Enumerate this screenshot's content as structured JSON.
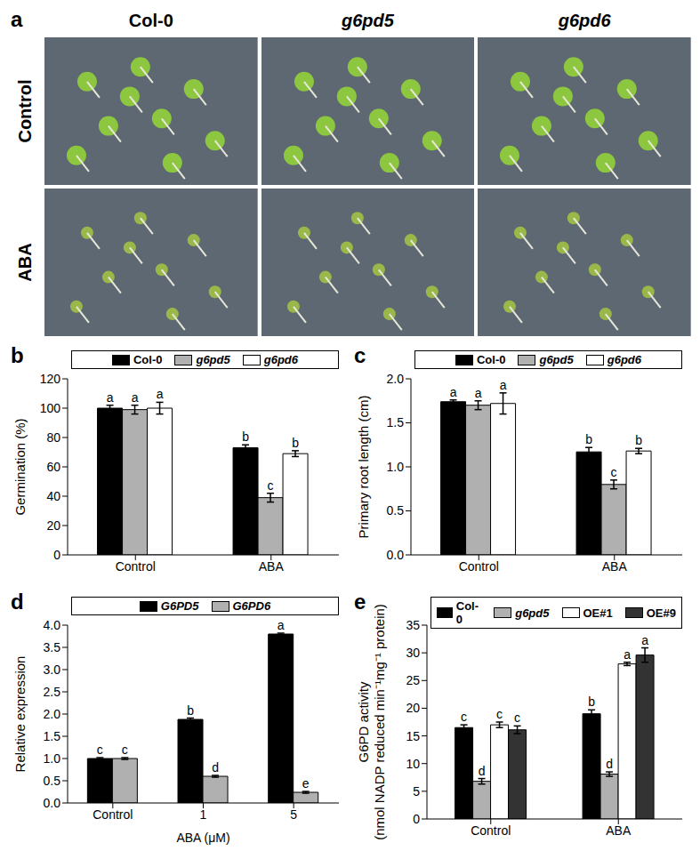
{
  "photo_panel": {
    "panel": "a",
    "columns": [
      "Col-0",
      "g6pd5",
      "g6pd6"
    ],
    "rows": [
      "Control",
      "ABA"
    ]
  },
  "chart_data": [
    {
      "panel": "b",
      "type": "bar",
      "categories": [
        "Control",
        "ABA"
      ],
      "ylabel": "Germination (%)",
      "ylim": [
        0,
        120
      ],
      "yticks": [
        0,
        20,
        40,
        60,
        80,
        100,
        120
      ],
      "legend": "top",
      "series": [
        {
          "name": "Col-0",
          "color": "#000000",
          "values": [
            100,
            73
          ],
          "errors": [
            2,
            2
          ],
          "letters": [
            "a",
            "b"
          ]
        },
        {
          "name": "g6pd5",
          "color": "#b0b0b0",
          "values": [
            99,
            39
          ],
          "errors": [
            3,
            3
          ],
          "letters": [
            "a",
            "c"
          ]
        },
        {
          "name": "g6pd6",
          "color": "#ffffff",
          "values": [
            100,
            69
          ],
          "errors": [
            4,
            2
          ],
          "letters": [
            "a",
            "b"
          ]
        }
      ]
    },
    {
      "panel": "c",
      "type": "bar",
      "categories": [
        "Control",
        "ABA"
      ],
      "ylabel": "Primary root length (cm)",
      "ylim": [
        0,
        2
      ],
      "yticks": [
        {
          "value": 0,
          "label": "0.0"
        },
        0.5,
        {
          "value": 1,
          "label": "1.0"
        },
        1.5,
        {
          "value": 2,
          "label": "2.0"
        }
      ],
      "legend": "top",
      "series": [
        {
          "name": "Col-0",
          "color": "#000000",
          "values": [
            1.74,
            1.17
          ],
          "errors": [
            0.02,
            0.05
          ],
          "letters": [
            "a",
            "b"
          ]
        },
        {
          "name": "g6pd5",
          "color": "#b0b0b0",
          "values": [
            1.7,
            0.8
          ],
          "errors": [
            0.05,
            0.05
          ],
          "letters": [
            "a",
            "c"
          ]
        },
        {
          "name": "g6pd6",
          "color": "#ffffff",
          "values": [
            1.72,
            1.18
          ],
          "errors": [
            0.12,
            0.03
          ],
          "letters": [
            "a",
            "b"
          ]
        }
      ]
    },
    {
      "panel": "d",
      "type": "bar",
      "categories": [
        "Control",
        "1",
        "5"
      ],
      "xlabel": "ABA (μM)",
      "ylabel": "Relative expression",
      "ylim": [
        0,
        4
      ],
      "yticks": [
        {
          "value": 0,
          "label": "0.0"
        },
        0.5,
        {
          "value": 1,
          "label": "1.0"
        },
        1.5,
        {
          "value": 2,
          "label": "2.0"
        },
        2.5,
        {
          "value": 3,
          "label": "3.0"
        },
        3.5,
        {
          "value": 4,
          "label": "4.0"
        }
      ],
      "legend": "top",
      "series": [
        {
          "name": "G6PD5",
          "color": "#000000",
          "values": [
            1.0,
            1.88,
            3.8
          ],
          "errors": [
            0.02,
            0.03,
            0.02
          ],
          "letters": [
            "c",
            "b",
            "a"
          ]
        },
        {
          "name": "G6PD6",
          "color": "#b0b0b0",
          "values": [
            1.0,
            0.6,
            0.24
          ],
          "errors": [
            0.02,
            0.02,
            0.02
          ],
          "letters": [
            "c",
            "d",
            "e"
          ]
        }
      ]
    },
    {
      "panel": "e",
      "type": "bar",
      "categories": [
        "Control",
        "ABA"
      ],
      "ylabel": [
        "G6PD activity",
        "(nmol NADP reduced min⁻¹mg⁻¹ protein)"
      ],
      "ylim": [
        0,
        35
      ],
      "yticks": [
        0,
        5,
        10,
        15,
        20,
        25,
        30,
        35
      ],
      "legend": "top",
      "series": [
        {
          "name": "Col-0",
          "color": "#000000",
          "values": [
            16.5,
            19
          ],
          "errors": [
            0.5,
            0.7
          ],
          "letters": [
            "c",
            "b"
          ]
        },
        {
          "name": "g6pd5",
          "color": "#b0b0b0",
          "values": [
            6.8,
            8.1
          ],
          "errors": [
            0.5,
            0.4
          ],
          "letters": [
            "d",
            "d"
          ]
        },
        {
          "name": "OE#1",
          "color": "#ffffff",
          "values": [
            17,
            28
          ],
          "errors": [
            0.5,
            0.3
          ],
          "letters": [
            "c",
            "a"
          ]
        },
        {
          "name": "OE#9",
          "color": "#333333",
          "values": [
            16.1,
            29.6
          ],
          "errors": [
            0.7,
            1.3
          ],
          "letters": [
            "c",
            "a"
          ]
        }
      ]
    }
  ]
}
